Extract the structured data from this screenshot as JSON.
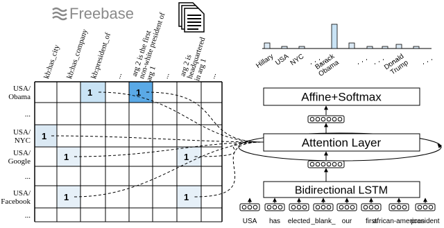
{
  "logo": "Freebase",
  "matrix": {
    "column_labels": [
      [
        "kb:has_city"
      ],
      [
        "kb:has_company"
      ],
      [
        "kb:president_of"
      ],
      [
        "..."
      ],
      [
        "arg 2 is the first",
        "non-white president of",
        "arg 1"
      ],
      [
        "..."
      ],
      [
        "arg 2 is",
        "headquartered",
        "in arg 1"
      ],
      [
        "..."
      ]
    ],
    "row_labels": [
      [
        "USA/",
        "Obama"
      ],
      [
        "..."
      ],
      [
        "USA/",
        "NYC"
      ],
      [
        "USA/",
        "Google"
      ],
      [
        "..."
      ],
      [
        "USA/",
        "Facebook"
      ],
      [
        "..."
      ]
    ],
    "rows": [
      [
        null,
        null,
        "1",
        null,
        "1",
        null,
        null,
        null
      ],
      [
        null,
        null,
        null,
        null,
        null,
        null,
        null,
        null
      ],
      [
        "1",
        null,
        null,
        null,
        null,
        null,
        null,
        null
      ],
      [
        null,
        "1",
        null,
        null,
        null,
        null,
        "1",
        null
      ],
      [
        null,
        null,
        null,
        null,
        null,
        null,
        null,
        null
      ],
      [
        null,
        "1",
        null,
        null,
        null,
        null,
        "1",
        null
      ],
      [
        null,
        null,
        null,
        null,
        null,
        null,
        null,
        null
      ]
    ]
  },
  "attention_words": [
    [
      "Hillary"
    ],
    [
      "USA"
    ],
    [
      "NYC"
    ],
    [
      "Barack",
      "Obama"
    ],
    [
      "Donald",
      "Trump"
    ]
  ],
  "model": {
    "top": "Affine+Softmax",
    "attention": "Attention Layer",
    "encoder": "Bidirectional LSTM"
  },
  "input_words": [
    "USA",
    "has",
    "elected",
    "_blank_",
    "our",
    "first",
    "african-american",
    "president"
  ]
}
